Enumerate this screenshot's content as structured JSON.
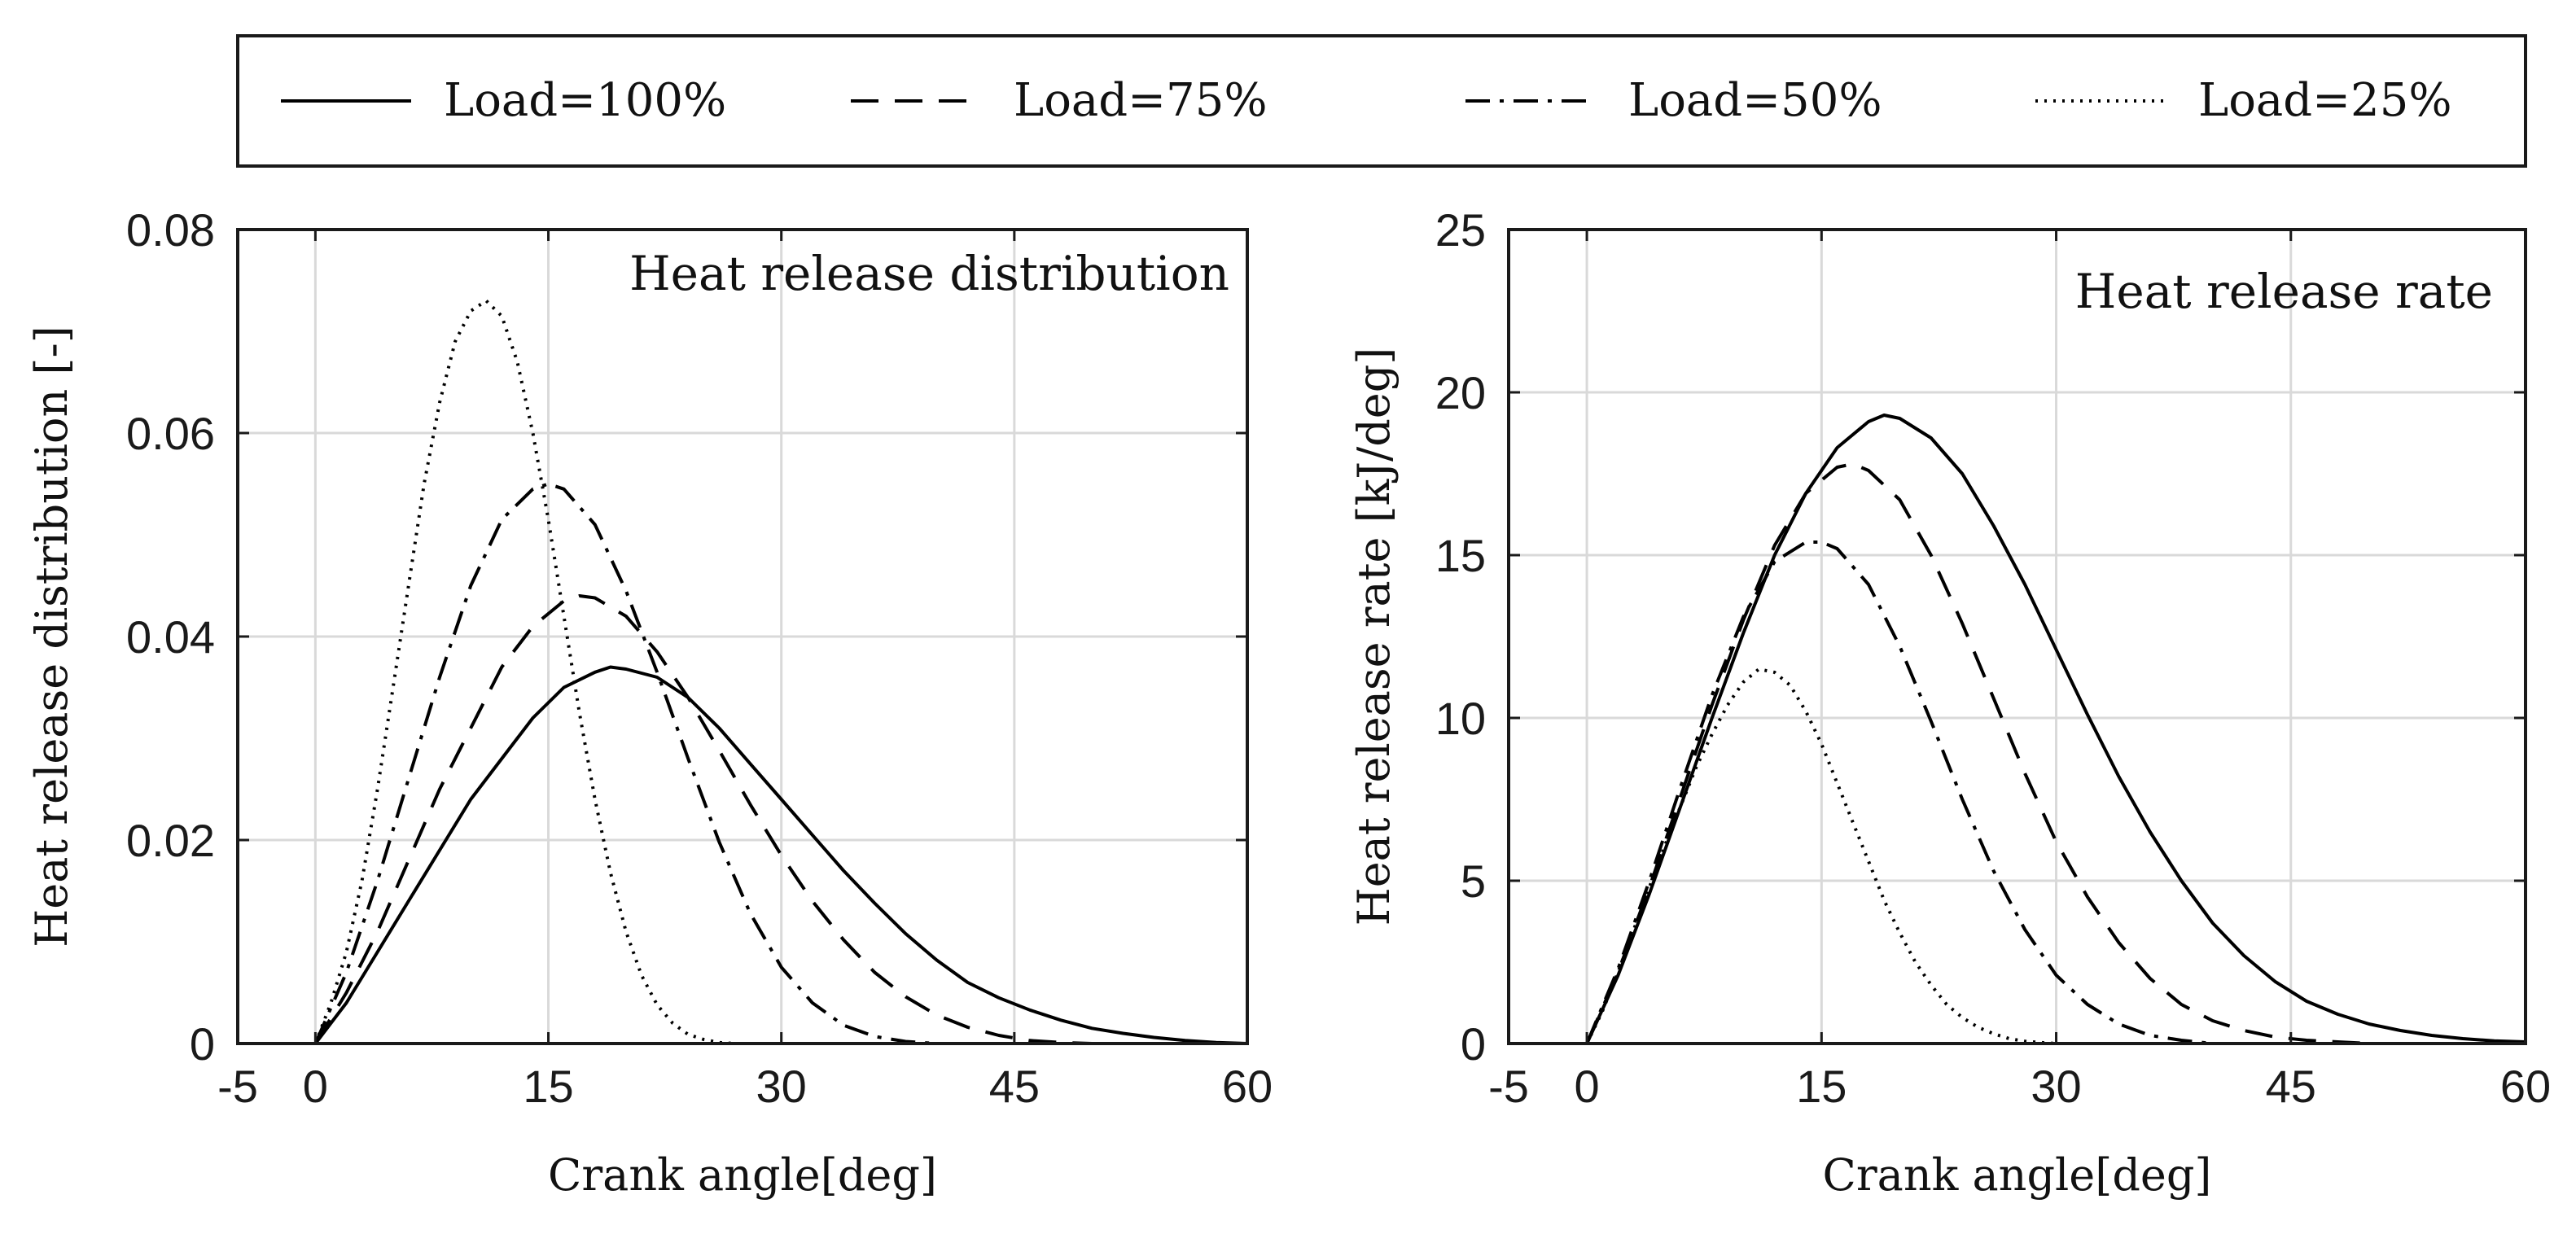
{
  "legend": {
    "entries": [
      {
        "label": "Load=100%",
        "style": "solid"
      },
      {
        "label": "Load=75%",
        "style": "dashed"
      },
      {
        "label": "Load=50%",
        "style": "dashdot"
      },
      {
        "label": "Load=25%",
        "style": "dotted"
      }
    ]
  },
  "chart_data": [
    {
      "type": "line",
      "title": "Heat release distribution",
      "xlabel": "Crank angle[deg]",
      "ylabel": "Heat release distribution [-]",
      "xlim": [
        -5,
        60
      ],
      "ylim": [
        0,
        0.08
      ],
      "xticks": [
        -5,
        0,
        15,
        30,
        45,
        60
      ],
      "yticks": [
        0,
        0.02,
        0.04,
        0.06,
        0.08
      ],
      "xtick_labels": [
        "-5",
        "0",
        "15",
        "30",
        "45",
        "60"
      ],
      "ytick_labels": [
        "0",
        "0.02",
        "0.04",
        "0.06",
        "0.08"
      ],
      "grid": true,
      "series": [
        {
          "name": "Load=100%",
          "style": "solid",
          "x": [
            0,
            2,
            4,
            6,
            8,
            10,
            12,
            14,
            16,
            18,
            19,
            20,
            22,
            24,
            26,
            28,
            30,
            32,
            34,
            36,
            38,
            40,
            42,
            44,
            46,
            48,
            50,
            52,
            54,
            56,
            58,
            60
          ],
          "y": [
            0,
            0.004,
            0.009,
            0.014,
            0.019,
            0.024,
            0.028,
            0.032,
            0.035,
            0.0365,
            0.037,
            0.0368,
            0.036,
            0.034,
            0.031,
            0.0275,
            0.024,
            0.0205,
            0.017,
            0.0138,
            0.0108,
            0.0082,
            0.006,
            0.0045,
            0.0033,
            0.0023,
            0.0015,
            0.001,
            0.0006,
            0.0003,
            0.0001,
            0
          ]
        },
        {
          "name": "Load=75%",
          "style": "dashed",
          "x": [
            0,
            2,
            4,
            6,
            8,
            10,
            12,
            14,
            16,
            17,
            18,
            20,
            22,
            24,
            26,
            28,
            30,
            32,
            34,
            36,
            38,
            40,
            42,
            44,
            46,
            48,
            50
          ],
          "y": [
            0,
            0.005,
            0.011,
            0.018,
            0.025,
            0.031,
            0.037,
            0.041,
            0.0435,
            0.044,
            0.0438,
            0.042,
            0.0385,
            0.034,
            0.0288,
            0.0235,
            0.0185,
            0.014,
            0.0102,
            0.007,
            0.0046,
            0.0028,
            0.0016,
            0.0008,
            0.0003,
            0.0001,
            0
          ]
        },
        {
          "name": "Load=50%",
          "style": "dashdot",
          "x": [
            0,
            2,
            4,
            6,
            8,
            10,
            12,
            14,
            15,
            16,
            18,
            20,
            22,
            24,
            26,
            28,
            30,
            32,
            34,
            36,
            38,
            40
          ],
          "y": [
            0,
            0.007,
            0.016,
            0.026,
            0.036,
            0.045,
            0.0515,
            0.0545,
            0.055,
            0.0545,
            0.051,
            0.0445,
            0.0365,
            0.028,
            0.0198,
            0.0128,
            0.0075,
            0.004,
            0.0018,
            0.0007,
            0.0002,
            0
          ]
        },
        {
          "name": "Load=25%",
          "style": "dotted",
          "x": [
            0,
            1,
            2,
            3,
            4,
            5,
            6,
            7,
            8,
            9,
            10,
            11,
            12,
            13,
            14,
            15,
            16,
            17,
            18,
            19,
            20,
            21,
            22,
            23,
            24,
            25,
            26,
            27,
            28,
            29,
            30
          ],
          "y": [
            0,
            0.004,
            0.009,
            0.016,
            0.025,
            0.035,
            0.045,
            0.055,
            0.063,
            0.069,
            0.072,
            0.073,
            0.0715,
            0.067,
            0.06,
            0.0515,
            0.042,
            0.0325,
            0.024,
            0.0168,
            0.011,
            0.0067,
            0.0038,
            0.002,
            0.0009,
            0.0004,
            0.0001,
            0,
            0,
            0,
            0
          ]
        }
      ]
    },
    {
      "type": "line",
      "title": "Heat release rate",
      "xlabel": "Crank angle[deg]",
      "ylabel": "Heat release rate [kJ/deg]",
      "xlim": [
        -5,
        60
      ],
      "ylim": [
        0,
        25
      ],
      "xticks": [
        -5,
        0,
        15,
        30,
        45,
        60
      ],
      "yticks": [
        0,
        5,
        10,
        15,
        20,
        25
      ],
      "xtick_labels": [
        "-5",
        "0",
        "15",
        "30",
        "45",
        "60"
      ],
      "ytick_labels": [
        "0",
        "5",
        "10",
        "15",
        "20",
        "25"
      ],
      "grid": true,
      "series": [
        {
          "name": "Load=100%",
          "style": "solid",
          "x": [
            0,
            2,
            4,
            6,
            8,
            10,
            12,
            14,
            16,
            18,
            19,
            20,
            22,
            24,
            26,
            28,
            30,
            32,
            34,
            36,
            38,
            40,
            42,
            44,
            46,
            48,
            50,
            52,
            54,
            56,
            58,
            60
          ],
          "y": [
            0,
            2.1,
            4.6,
            7.3,
            10.0,
            12.6,
            15.0,
            16.9,
            18.3,
            19.1,
            19.3,
            19.2,
            18.6,
            17.5,
            15.9,
            14.1,
            12.1,
            10.1,
            8.2,
            6.5,
            5.0,
            3.7,
            2.7,
            1.9,
            1.3,
            0.9,
            0.6,
            0.4,
            0.25,
            0.15,
            0.08,
            0.05
          ]
        },
        {
          "name": "Load=75%",
          "style": "dashed",
          "x": [
            0,
            2,
            4,
            6,
            8,
            10,
            12,
            14,
            16,
            17,
            18,
            20,
            22,
            24,
            26,
            28,
            30,
            32,
            34,
            36,
            38,
            40,
            42,
            44,
            46,
            48,
            50
          ],
          "y": [
            0,
            2.2,
            4.8,
            7.6,
            10.4,
            13.0,
            15.3,
            16.9,
            17.7,
            17.8,
            17.6,
            16.7,
            15.0,
            12.9,
            10.6,
            8.3,
            6.2,
            4.5,
            3.1,
            2.0,
            1.2,
            0.7,
            0.4,
            0.2,
            0.1,
            0.05,
            0
          ]
        },
        {
          "name": "Load=50%",
          "style": "dashdot",
          "x": [
            0,
            2,
            4,
            6,
            8,
            10,
            12,
            14,
            15,
            16,
            18,
            20,
            22,
            24,
            26,
            28,
            30,
            32,
            34,
            36,
            38,
            40
          ],
          "y": [
            0,
            2.3,
            5.0,
            7.9,
            10.7,
            13.1,
            14.8,
            15.4,
            15.4,
            15.2,
            14.1,
            12.2,
            9.9,
            7.5,
            5.3,
            3.5,
            2.1,
            1.2,
            0.6,
            0.25,
            0.1,
            0
          ]
        },
        {
          "name": "Load=25%",
          "style": "dotted",
          "x": [
            0,
            1,
            2,
            3,
            4,
            5,
            6,
            7,
            8,
            9,
            10,
            11,
            12,
            13,
            14,
            15,
            16,
            17,
            18,
            19,
            20,
            21,
            22,
            23,
            24,
            25,
            26,
            27,
            28,
            29,
            30
          ],
          "y": [
            0,
            1.0,
            2.2,
            3.5,
            4.8,
            6.1,
            7.3,
            8.5,
            9.5,
            10.4,
            11.1,
            11.5,
            11.4,
            11.0,
            10.2,
            9.2,
            8.0,
            6.8,
            5.6,
            4.4,
            3.4,
            2.5,
            1.8,
            1.2,
            0.8,
            0.5,
            0.3,
            0.15,
            0.07,
            0.03,
            0
          ]
        }
      ]
    }
  ]
}
